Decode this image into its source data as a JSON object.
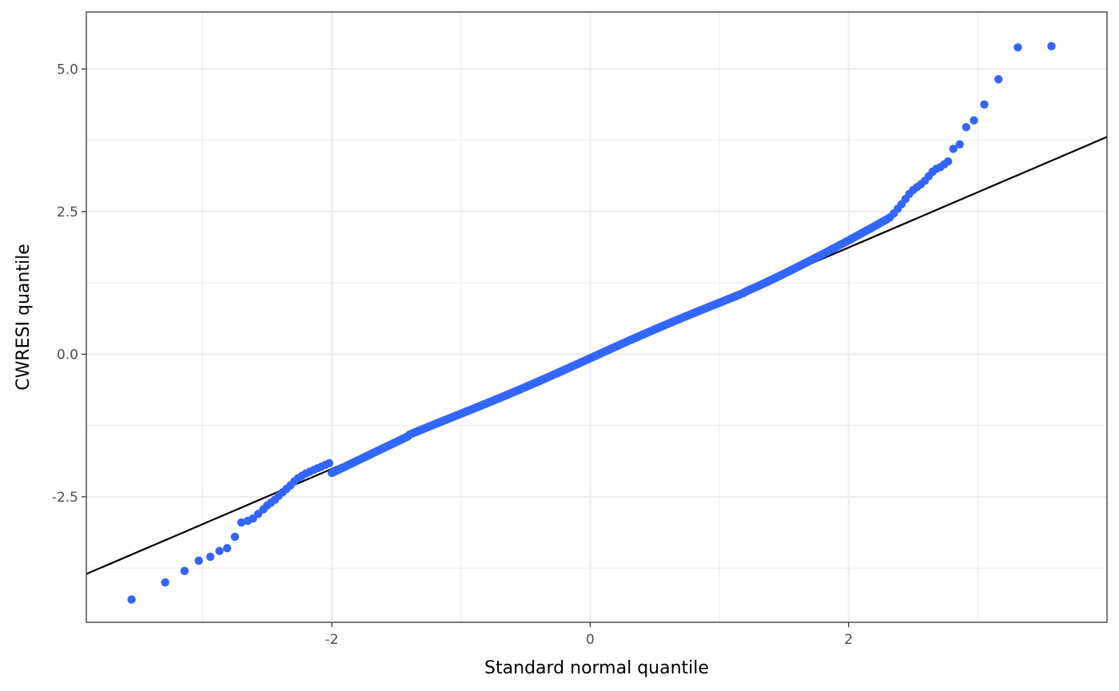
{
  "chart_data": {
    "type": "scatter",
    "xlabel": "Standard normal quantile",
    "ylabel": "CWRESI quantile",
    "xlim": [
      -3.9,
      4.0
    ],
    "ylim": [
      -4.7,
      6.0
    ],
    "x_ticks": [
      -2,
      0,
      2
    ],
    "x_tick_labels": [
      "-2",
      "0",
      "2"
    ],
    "y_ticks": [
      -2.5,
      0.0,
      2.5,
      5.0
    ],
    "y_tick_labels": [
      "-2.5",
      "0.0",
      "2.5",
      "5.0"
    ],
    "grid": true,
    "theme": "bw",
    "point_color": "#3366FF",
    "line_color": "#000000",
    "reference_line": {
      "intercept": -0.07,
      "slope": 0.97
    },
    "series": [
      {
        "points": [
          [
            -3.55,
            -4.3
          ],
          [
            -3.29,
            -4.0
          ],
          [
            -3.14,
            -3.8
          ],
          [
            -3.03,
            -3.62
          ],
          [
            -2.94,
            -3.55
          ],
          [
            -2.87,
            -3.45
          ],
          [
            -2.81,
            -3.4
          ],
          [
            -2.75,
            -3.2
          ],
          [
            -2.7,
            -2.95
          ],
          [
            -2.65,
            -2.92
          ],
          [
            -2.61,
            -2.88
          ],
          [
            -2.57,
            -2.8
          ],
          [
            -2.53,
            -2.72
          ],
          [
            -2.5,
            -2.65
          ],
          [
            -2.47,
            -2.6
          ],
          [
            -2.44,
            -2.55
          ],
          [
            -2.41,
            -2.48
          ],
          [
            -2.38,
            -2.42
          ],
          [
            -2.35,
            -2.36
          ],
          [
            -2.32,
            -2.3
          ],
          [
            -2.29,
            -2.23
          ],
          [
            -2.26,
            -2.17
          ],
          [
            -2.23,
            -2.13
          ],
          [
            -2.2,
            -2.09
          ],
          [
            -2.17,
            -2.06
          ],
          [
            -2.14,
            -2.03
          ],
          [
            -2.11,
            -2.0
          ],
          [
            -2.08,
            -1.97
          ],
          [
            -2.05,
            -1.94
          ],
          [
            -2.02,
            -1.91
          ]
        ]
      }
    ]
  }
}
